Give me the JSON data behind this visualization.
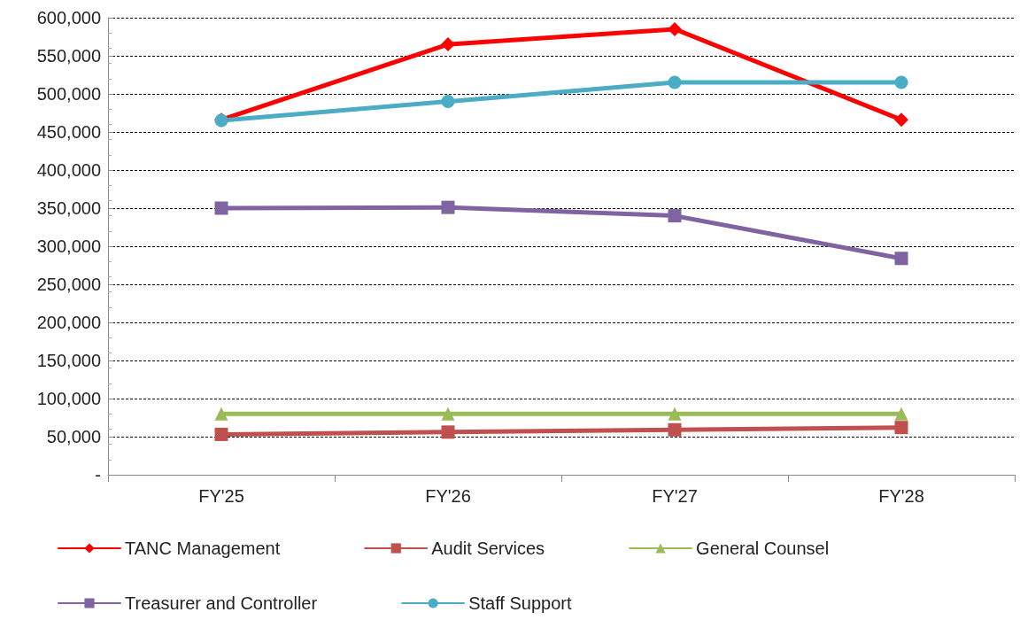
{
  "chart_data": {
    "type": "line",
    "categories": [
      "FY'25",
      "FY'26",
      "FY'27",
      "FY'28"
    ],
    "series": [
      {
        "name": "TANC Management",
        "color": "#ff0000",
        "marker": "diamond",
        "values": [
          466000,
          565000,
          585000,
          466000
        ]
      },
      {
        "name": "Audit Services",
        "color": "#c0504d",
        "marker": "square",
        "values": [
          53000,
          56000,
          59000,
          62000
        ]
      },
      {
        "name": "General Counsel",
        "color": "#9bbb59",
        "marker": "triangle",
        "values": [
          80000,
          80000,
          80000,
          80000
        ]
      },
      {
        "name": "Treasurer and Controller",
        "color": "#8064a2",
        "marker": "square",
        "values": [
          350000,
          351000,
          340000,
          284000
        ]
      },
      {
        "name": "Staff Support",
        "color": "#4bacc6",
        "marker": "circle",
        "values": [
          465000,
          490000,
          515000,
          515000
        ]
      }
    ],
    "ylim": [
      0,
      600000
    ],
    "yticks": [
      {
        "value": 0,
        "label": "-"
      },
      {
        "value": 50000,
        "label": "50,000"
      },
      {
        "value": 100000,
        "label": "100,000"
      },
      {
        "value": 150000,
        "label": "150,000"
      },
      {
        "value": 200000,
        "label": "200,000"
      },
      {
        "value": 250000,
        "label": "250,000"
      },
      {
        "value": 300000,
        "label": "300,000"
      },
      {
        "value": 350000,
        "label": "350,000"
      },
      {
        "value": 400000,
        "label": "400,000"
      },
      {
        "value": 450000,
        "label": "450,000"
      },
      {
        "value": 500000,
        "label": "500,000"
      },
      {
        "value": 550000,
        "label": "550,000"
      },
      {
        "value": 600000,
        "label": "600,000"
      }
    ],
    "grid": "y",
    "legend": "bottom",
    "line_style": "solid"
  }
}
